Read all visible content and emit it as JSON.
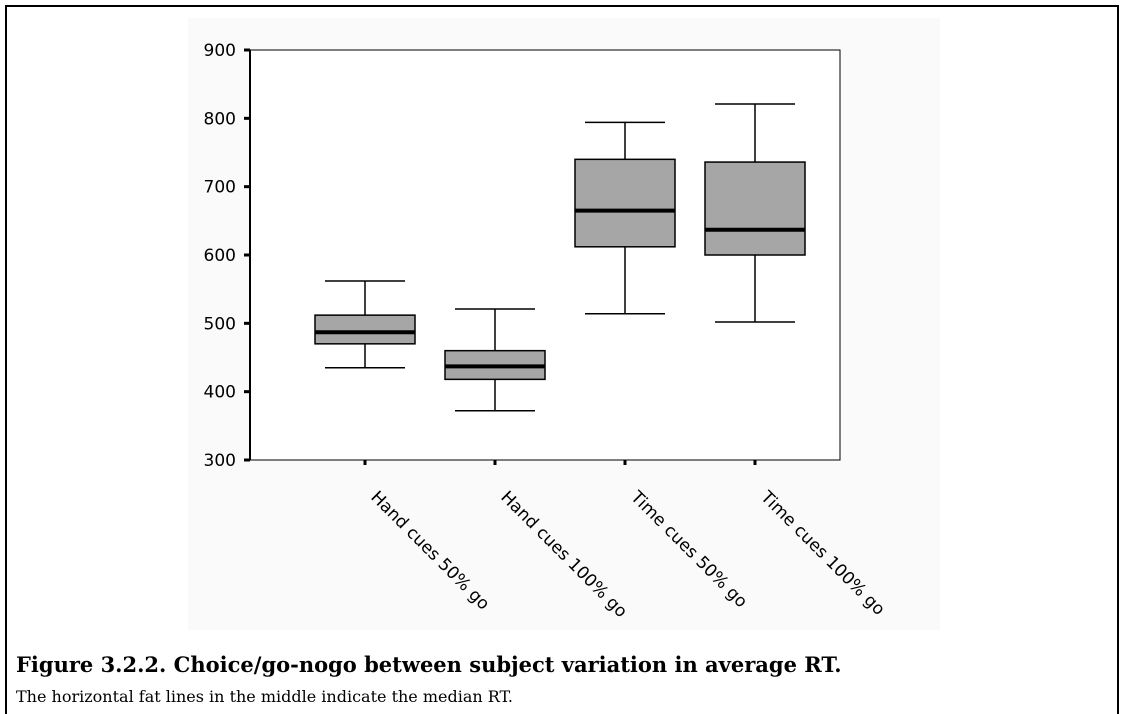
{
  "chart_data": {
    "type": "box",
    "categories": [
      "Hand cues 50% go",
      "Hand cues 100% go",
      "Time cues 50% go",
      "Time cues 100% go"
    ],
    "boxes": [
      {
        "min": 435,
        "q1": 470,
        "median": 487,
        "q3": 512,
        "max": 562
      },
      {
        "min": 372,
        "q1": 418,
        "median": 437,
        "q3": 460,
        "max": 521
      },
      {
        "min": 514,
        "q1": 612,
        "median": 665,
        "q3": 740,
        "max": 794
      },
      {
        "min": 502,
        "q1": 600,
        "median": 637,
        "q3": 736,
        "max": 821
      }
    ],
    "ylim": [
      300,
      900
    ],
    "yticks": [
      300,
      400,
      500,
      600,
      700,
      800,
      900
    ],
    "box_color": "#a6a6a6",
    "xlabel": "",
    "ylabel": "",
    "grid": false
  },
  "caption": {
    "title": "Figure 3.2.2. Choice/go-nogo between subject variation in average RT.",
    "text": "The horizontal fat lines in the middle indicate the median RT."
  }
}
